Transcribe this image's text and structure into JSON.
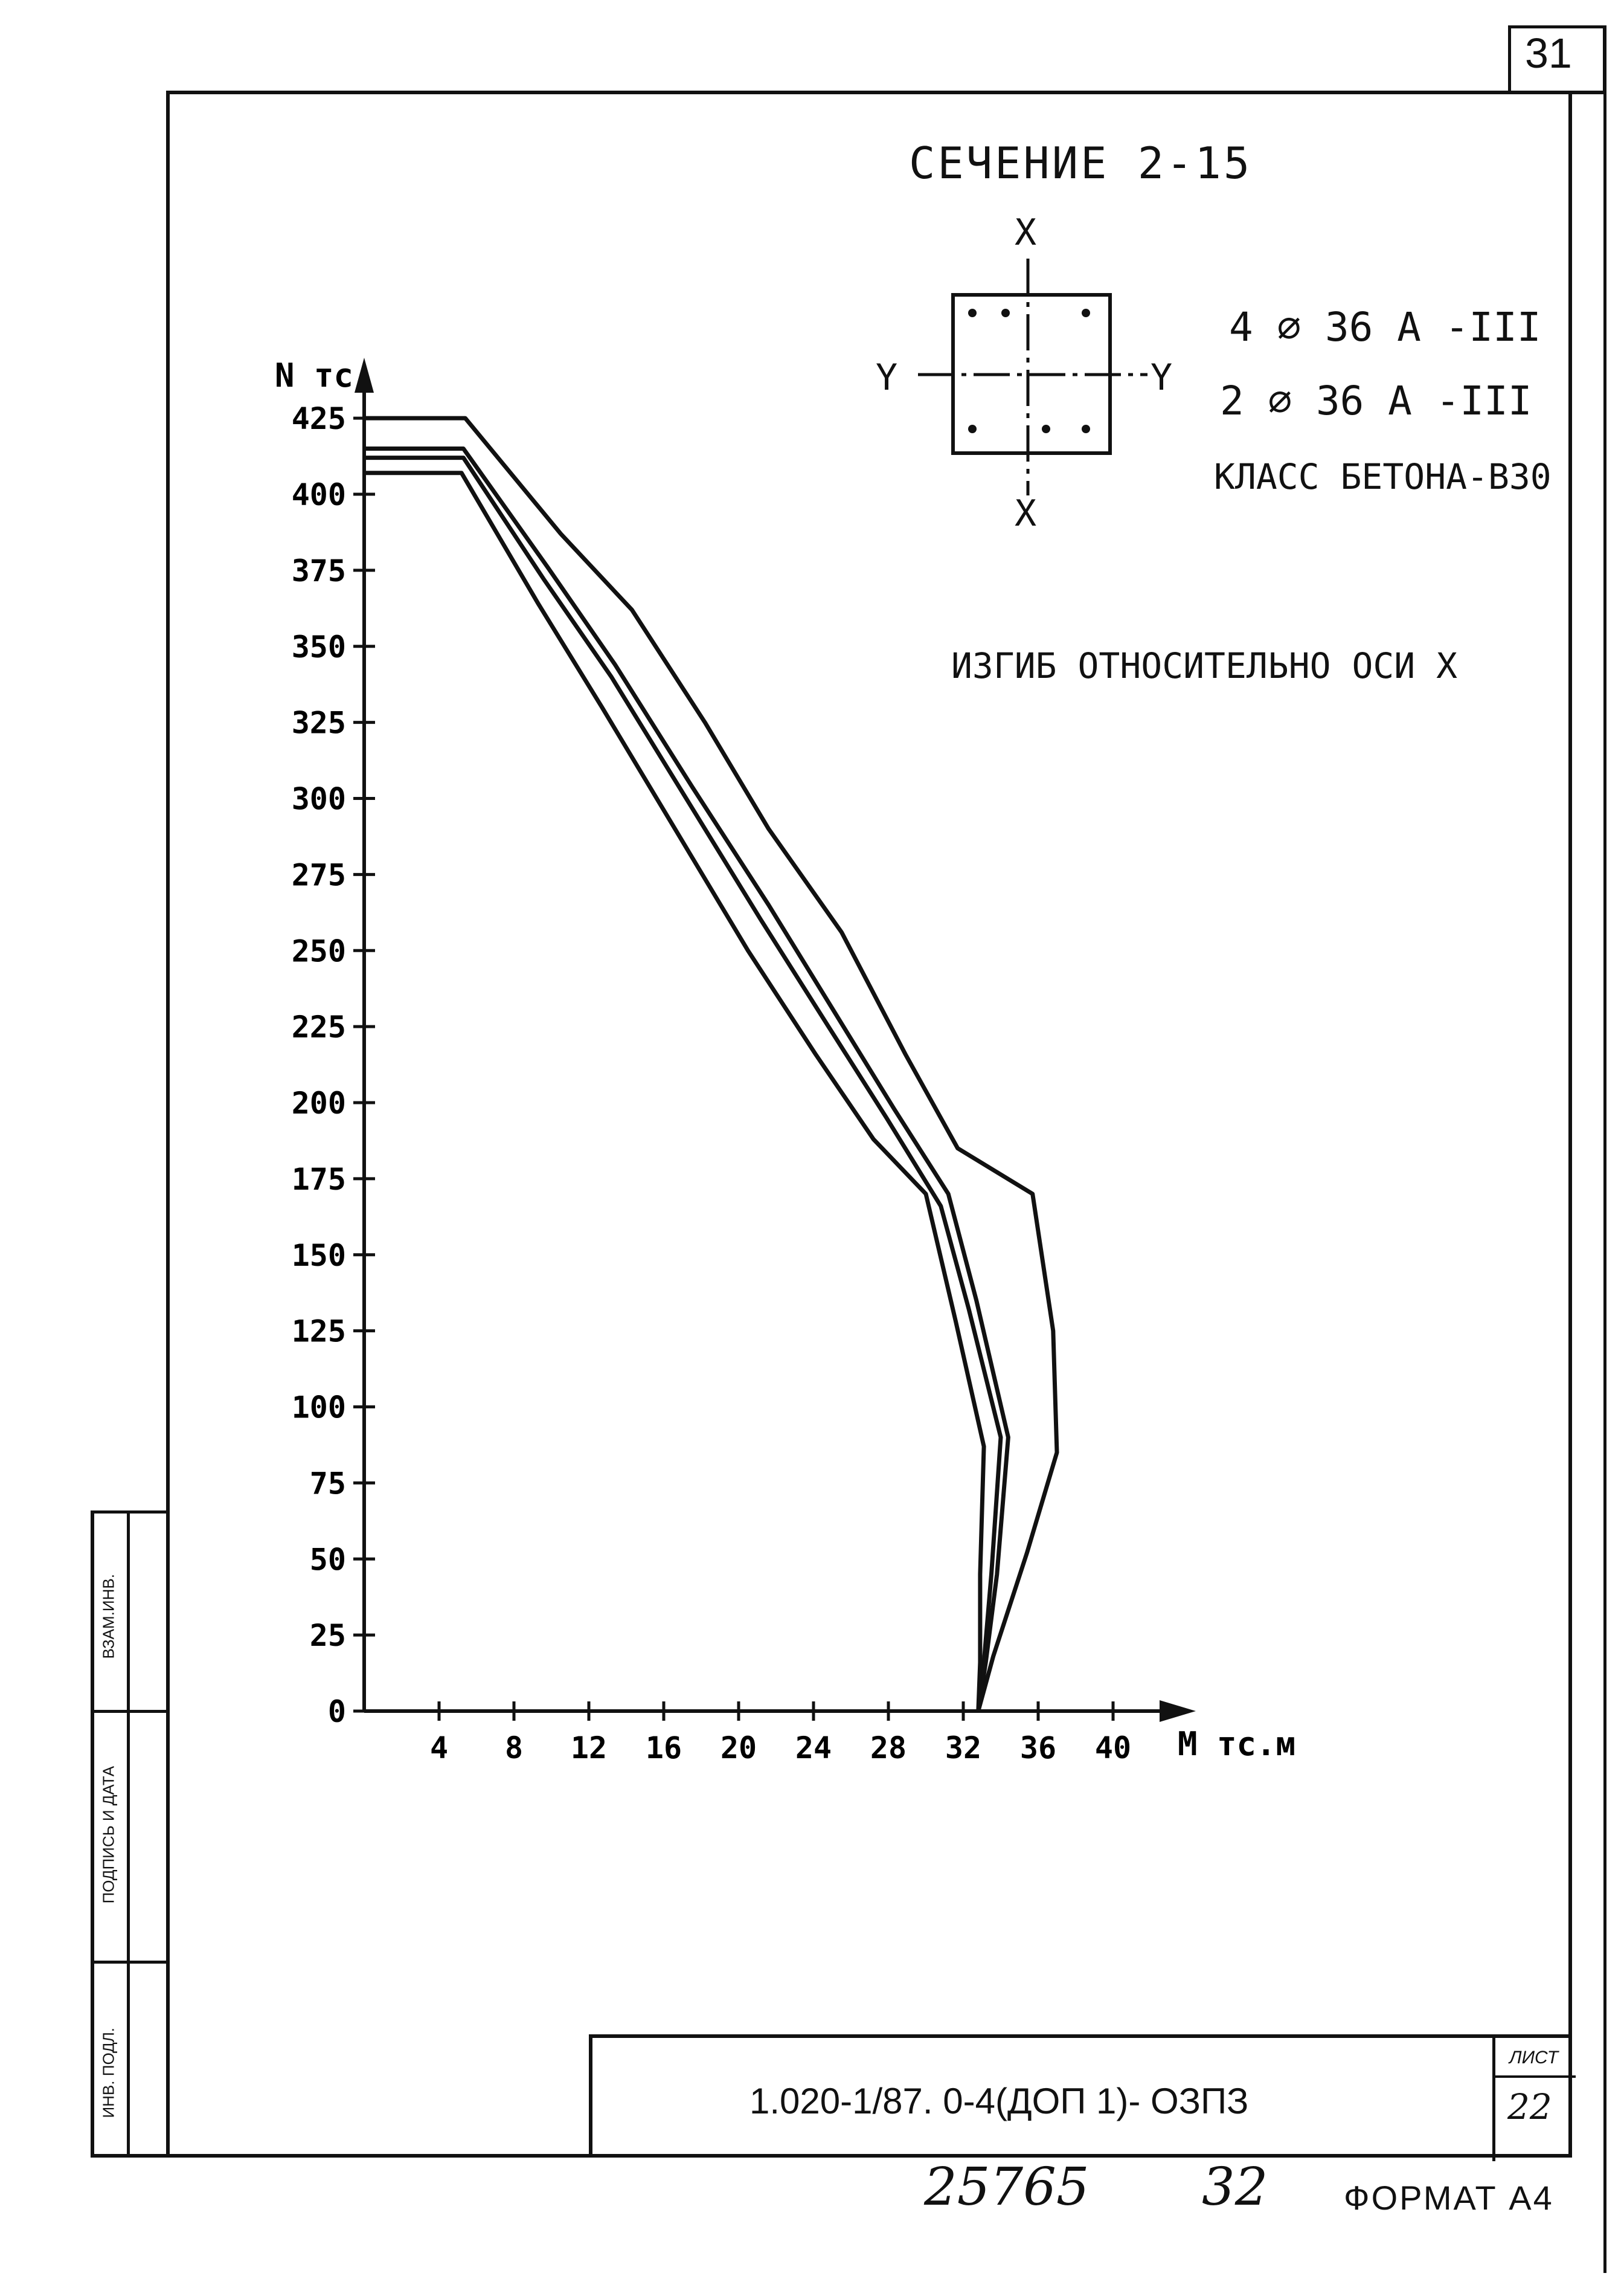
{
  "sheet_number": "31",
  "section": {
    "title": "СЕЧЕНИЕ 2-15",
    "axis_x_top": "X",
    "axis_x_bottom": "X",
    "axis_y_left": "Y",
    "axis_y_right": "Y"
  },
  "reinforcement": {
    "line1": "4 ⌀ 36 А -III",
    "line2": "2 ⌀ 36 А -III",
    "concrete": "КЛАСС БЕТОНА-В30"
  },
  "bending_note": "ИЗГИБ ОТНОСИТЕЛЬНО ОСИ X",
  "side_stamp": {
    "cell1": "ВЗАМ.ИНВ.",
    "cell2": "ПОДПИСЬ И ДАТА",
    "cell3": "ИНВ. ПОДЛ."
  },
  "title_block": {
    "code": "1.020-1/87. 0-4(ДОП 1)- ОЗПЗ",
    "sheet_label": "ЛИСТ",
    "sheet_value": "22"
  },
  "handwritten": {
    "number1": "25765",
    "number2": "32"
  },
  "format_label": "ФОРМАТ А4",
  "chart_data": {
    "type": "line",
    "ylabel": "N тс",
    "xlabel": "М тс.м",
    "xlim": [
      0,
      42
    ],
    "ylim": [
      0,
      430
    ],
    "x_ticks": [
      "4",
      "8",
      "12",
      "16",
      "20",
      "24",
      "28",
      "32",
      "36",
      "40"
    ],
    "y_ticks": [
      "0",
      "25",
      "50",
      "75",
      "100",
      "125",
      "150",
      "175",
      "200",
      "225",
      "250",
      "275",
      "300",
      "325",
      "350",
      "375",
      "400",
      "425"
    ],
    "series": [
      {
        "points": [
          [
            0,
            425
          ],
          [
            5.4,
            425
          ],
          [
            10.5,
            387
          ],
          [
            14.3,
            362
          ],
          [
            18.2,
            325
          ],
          [
            21.6,
            290
          ],
          [
            25.5,
            256
          ],
          [
            28.9,
            216
          ],
          [
            31.7,
            185
          ],
          [
            35.7,
            170
          ],
          [
            36.8,
            125
          ],
          [
            37.0,
            85
          ],
          [
            35.4,
            52
          ],
          [
            33.6,
            18
          ],
          [
            32.8,
            0
          ]
        ]
      },
      {
        "points": [
          [
            0,
            415
          ],
          [
            5.3,
            415
          ],
          [
            9.8,
            376
          ],
          [
            13.4,
            344
          ],
          [
            17.5,
            304
          ],
          [
            21.6,
            265
          ],
          [
            25.2,
            229
          ],
          [
            28.3,
            198
          ],
          [
            31.2,
            170
          ],
          [
            32.7,
            135
          ],
          [
            34.4,
            90
          ],
          [
            33.8,
            45
          ],
          [
            33.2,
            16
          ],
          [
            32.8,
            0
          ]
        ]
      },
      {
        "points": [
          [
            0,
            412
          ],
          [
            5.3,
            412
          ],
          [
            9.6,
            372
          ],
          [
            13.2,
            340
          ],
          [
            17.2,
            300
          ],
          [
            21.2,
            260
          ],
          [
            24.8,
            225
          ],
          [
            27.9,
            195
          ],
          [
            30.8,
            166
          ],
          [
            32.3,
            132
          ],
          [
            34.0,
            90
          ],
          [
            33.5,
            45
          ],
          [
            33.1,
            16
          ],
          [
            32.8,
            0
          ]
        ]
      },
      {
        "points": [
          [
            0,
            407
          ],
          [
            5.2,
            407
          ],
          [
            9.3,
            364
          ],
          [
            12.7,
            330
          ],
          [
            16.6,
            290
          ],
          [
            20.5,
            250
          ],
          [
            24.1,
            216
          ],
          [
            27.2,
            188
          ],
          [
            30.0,
            170
          ],
          [
            31.6,
            128
          ],
          [
            33.1,
            87
          ],
          [
            32.9,
            45
          ],
          [
            32.9,
            16
          ],
          [
            32.8,
            0
          ]
        ]
      }
    ]
  }
}
